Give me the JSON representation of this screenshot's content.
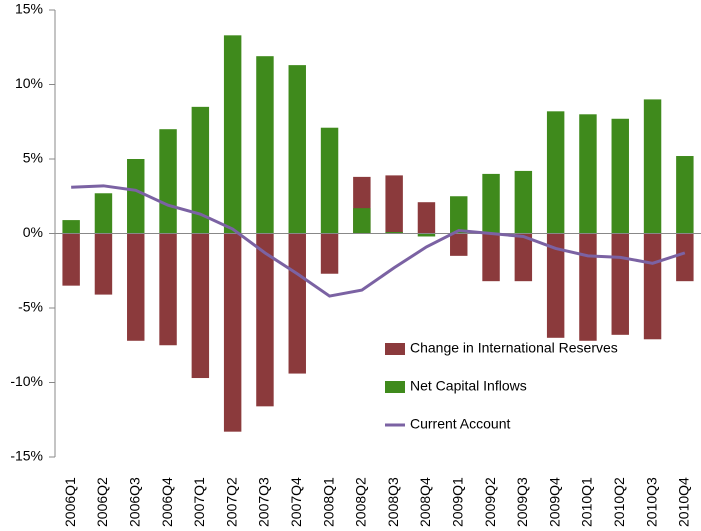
{
  "chart_data": {
    "type": "bar_line",
    "categories": [
      "2006Q1",
      "2006Q2",
      "2006Q3",
      "2006Q4",
      "2007Q1",
      "2007Q2",
      "2007Q3",
      "2007Q4",
      "2008Q1",
      "2008Q2",
      "2008Q3",
      "2008Q4",
      "2009Q1",
      "2009Q2",
      "2009Q3",
      "2009Q4",
      "2010Q1",
      "2010Q2",
      "2010Q3",
      "2010Q4"
    ],
    "series": [
      {
        "name": "Change in International Reserves",
        "type": "bar",
        "color": "#8b3a3c",
        "values": [
          -3.5,
          -4.1,
          -7.2,
          -7.5,
          -9.7,
          -13.3,
          -11.6,
          -9.4,
          -2.7,
          3.8,
          3.9,
          2.1,
          -1.5,
          -3.2,
          -3.2,
          -7.0,
          -7.2,
          -6.8,
          -7.1,
          -3.2
        ]
      },
      {
        "name": "Net Capital Inflows",
        "type": "bar",
        "color": "#3f8a1c",
        "values": [
          0.9,
          2.7,
          5.0,
          7.0,
          8.5,
          13.3,
          11.9,
          11.3,
          7.1,
          1.7,
          0.1,
          -0.2,
          2.5,
          4.0,
          4.2,
          8.2,
          8.0,
          7.7,
          9.0,
          5.2
        ]
      },
      {
        "name": "Current Account",
        "type": "line",
        "color": "#7b62a3",
        "values": [
          3.1,
          3.2,
          2.9,
          1.9,
          1.3,
          0.3,
          -1.3,
          -2.7,
          -4.2,
          -3.8,
          -2.3,
          -0.9,
          0.2,
          0.0,
          -0.2,
          -1.0,
          -1.5,
          -1.6,
          -2.0,
          -1.3
        ]
      }
    ],
    "ylim": [
      -15,
      15
    ],
    "yticks": [
      {
        "value": -15,
        "label": "-15%"
      },
      {
        "value": -10,
        "label": "-10%"
      },
      {
        "value": -5,
        "label": "-5%"
      },
      {
        "value": 0,
        "label": "0%"
      },
      {
        "value": 5,
        "label": "5%"
      },
      {
        "value": 10,
        "label": "10%"
      },
      {
        "value": 15,
        "label": "15%"
      }
    ],
    "grid": false,
    "legend": "lower right"
  }
}
